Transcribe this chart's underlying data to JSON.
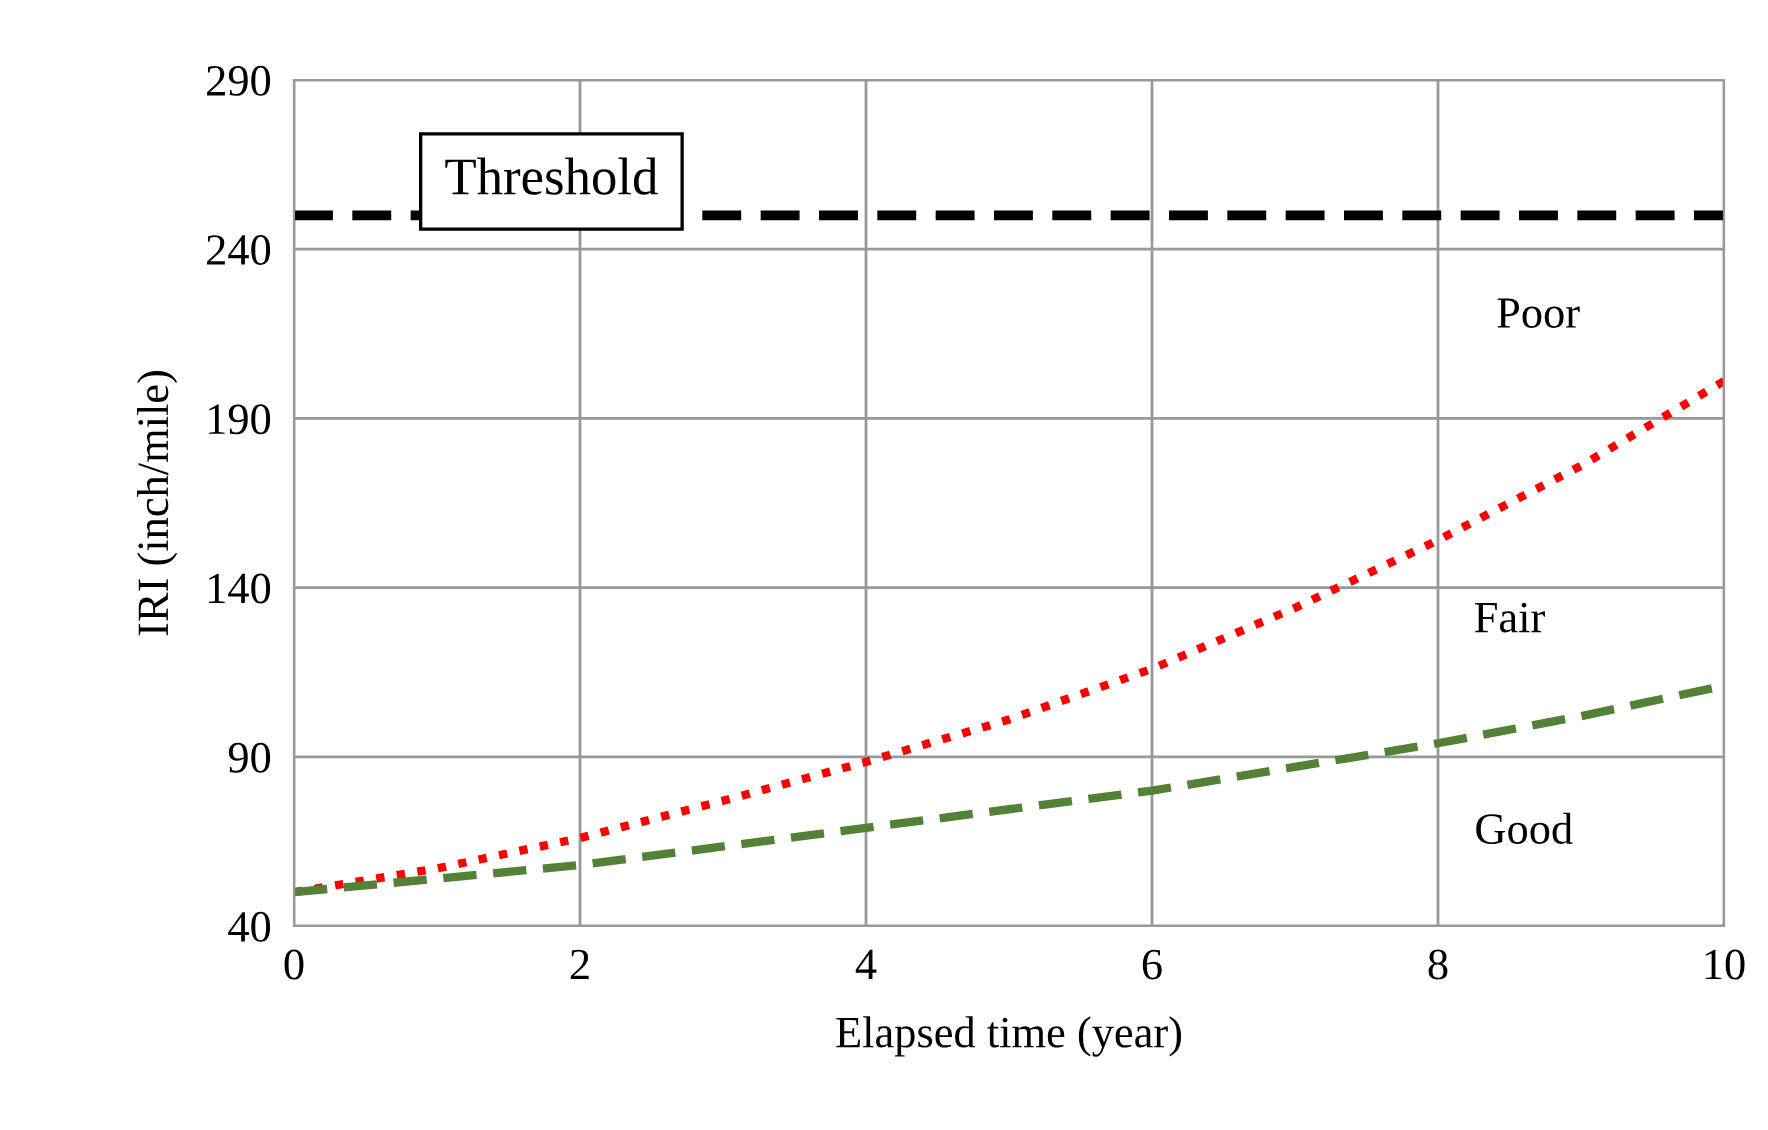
{
  "chart_data": {
    "type": "line",
    "xlabel": "Elapsed time (year)",
    "ylabel": "IRI (inch/mile)",
    "x": [
      0,
      1,
      2,
      3,
      4,
      5,
      6,
      7,
      8,
      9,
      10
    ],
    "series": [
      {
        "color": "#ff0000",
        "line_style": "dotted",
        "values": [
          50,
          57,
          66,
          77,
          88.5,
          101,
          116,
          134,
          154,
          176,
          201
        ]
      },
      {
        "color": "#538135",
        "line_style": "dashed",
        "values": [
          50,
          54,
          58,
          63.5,
          69,
          74.5,
          80,
          87,
          94,
          102,
          111
        ]
      }
    ],
    "ref_lines": [
      {
        "axis": "y",
        "value": 250,
        "label": "Threshold",
        "color": "#000000",
        "line_style": "dashed"
      }
    ],
    "annotations": [
      "Poor",
      "Fair",
      "Good"
    ],
    "xlim": [
      0,
      10
    ],
    "xticks": [
      0,
      2,
      4,
      6,
      8,
      10
    ],
    "ylim": [
      40,
      290
    ],
    "yticks": [
      40,
      90,
      140,
      190,
      240,
      290
    ],
    "grid": true,
    "legend": false,
    "marker": "none"
  }
}
